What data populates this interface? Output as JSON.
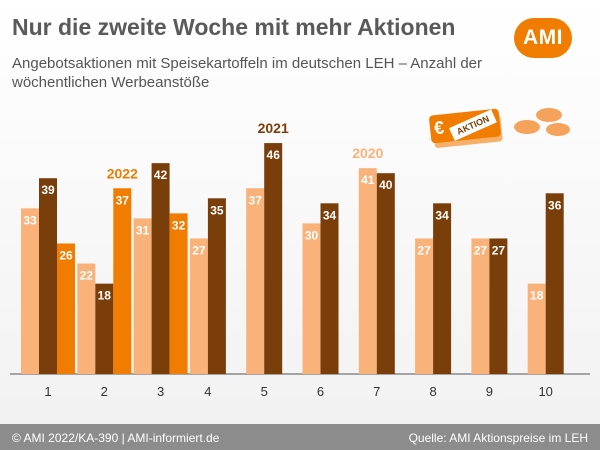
{
  "header": {
    "title": "Nur die zweite Woche mit mehr Aktionen",
    "subtitle": "Angebotsaktionen mit Speisekartoffeln im deutschen LEH – Anzahl der wöchentlichen Werbeanstöße",
    "logo": "AMI"
  },
  "icons": {
    "ticket_euro": "€",
    "ticket_label": "AKTION",
    "potatoes": "potato-icon"
  },
  "footer": {
    "copyright": "© AMI 2022/KA-390 | AMI-informiert.de",
    "source": "Quelle: AMI Aktionspreise im LEH"
  },
  "colors": {
    "2020": "#f9b27a",
    "2021": "#7a3e0a",
    "2022": "#f07d00",
    "footer": "#8c8c8c"
  },
  "chart_data": {
    "type": "bar",
    "title": "",
    "xlabel": "",
    "ylabel": "",
    "categories": [
      "1",
      "2",
      "3",
      "4",
      "5",
      "6",
      "7",
      "8",
      "9",
      "10"
    ],
    "series": [
      {
        "name": "2020",
        "values": [
          33,
          22,
          31,
          27,
          37,
          30,
          41,
          27,
          27,
          18
        ]
      },
      {
        "name": "2021",
        "values": [
          39,
          18,
          42,
          35,
          46,
          34,
          40,
          34,
          27,
          36
        ]
      },
      {
        "name": "2022",
        "values": [
          26,
          37,
          32,
          null,
          null,
          null,
          null,
          null,
          null,
          null
        ]
      }
    ],
    "ylim": [
      0,
      50
    ],
    "grid": false,
    "legend": "inline labels above bars"
  }
}
